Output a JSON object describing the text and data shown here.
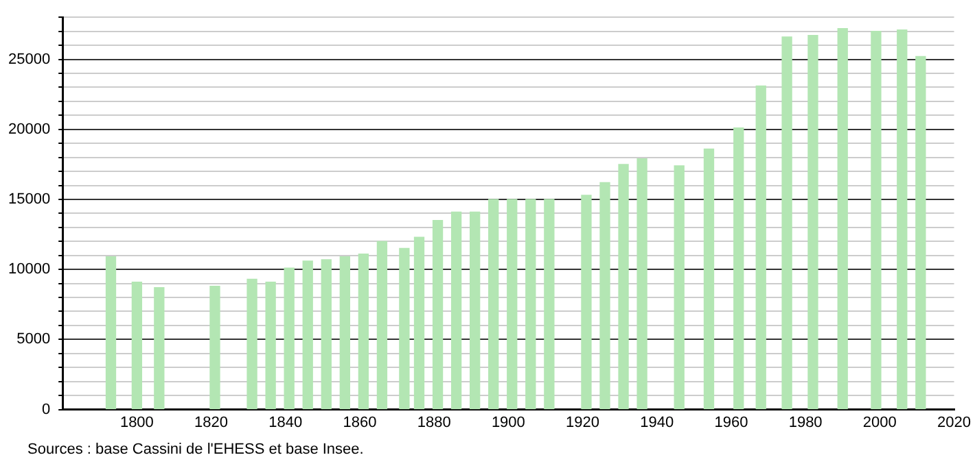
{
  "chart_data": {
    "type": "bar",
    "x": [
      1793,
      1800,
      1806,
      1821,
      1831,
      1836,
      1841,
      1846,
      1851,
      1856,
      1861,
      1866,
      1872,
      1876,
      1881,
      1886,
      1891,
      1896,
      1901,
      1906,
      1911,
      1921,
      1926,
      1931,
      1936,
      1946,
      1954,
      1962,
      1968,
      1975,
      1982,
      1990,
      1999,
      2006,
      2011
    ],
    "values": [
      10900,
      9100,
      8700,
      8800,
      9300,
      9100,
      10100,
      10600,
      10700,
      10900,
      11100,
      12000,
      11500,
      12300,
      13500,
      14100,
      14100,
      15000,
      15000,
      15000,
      15000,
      15300,
      16200,
      17500,
      17900,
      17400,
      18600,
      20100,
      23100,
      26600,
      26700,
      27200,
      27000,
      27100,
      25200
    ],
    "color": "#b3e6b3",
    "xlim": [
      1780,
      2020
    ],
    "xticks": [
      1800,
      1820,
      1840,
      1860,
      1880,
      1900,
      1920,
      1940,
      1960,
      1980,
      2000,
      2020
    ],
    "ylim": [
      0,
      28000
    ],
    "yticks": [
      0,
      {
        "value": 1000,
        "label": null
      },
      {
        "value": 2000,
        "label": null
      },
      {
        "value": 3000,
        "label": null
      },
      {
        "value": 4000,
        "label": null
      },
      5000,
      {
        "value": 6000,
        "label": null
      },
      {
        "value": 7000,
        "label": null
      },
      {
        "value": 8000,
        "label": null
      },
      {
        "value": 9000,
        "label": null
      },
      10000,
      {
        "value": 11000,
        "label": null
      },
      {
        "value": 12000,
        "label": null
      },
      {
        "value": 13000,
        "label": null
      },
      {
        "value": 14000,
        "label": null
      },
      15000,
      {
        "value": 16000,
        "label": null
      },
      {
        "value": 17000,
        "label": null
      },
      {
        "value": 18000,
        "label": null
      },
      {
        "value": 19000,
        "label": null
      },
      20000,
      {
        "value": 21000,
        "label": null
      },
      {
        "value": 22000,
        "label": null
      },
      {
        "value": 23000,
        "label": null
      },
      {
        "value": 24000,
        "label": null
      },
      25000,
      {
        "value": 26000,
        "label": null
      },
      {
        "value": 27000,
        "label": null
      },
      {
        "value": 28000,
        "label": null
      }
    ],
    "grid": "y",
    "annotations": [
      "Sources : base Cassini de l'EHESS et base Insee."
    ]
  }
}
